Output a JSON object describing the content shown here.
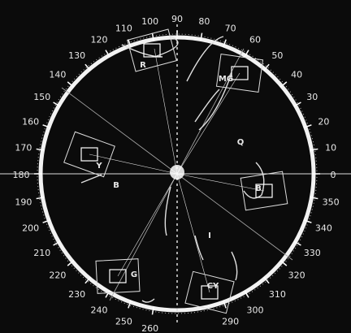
{
  "scale": {
    "degrees": [
      0,
      10,
      20,
      30,
      40,
      50,
      60,
      70,
      80,
      90,
      100,
      110,
      120,
      130,
      140,
      150,
      160,
      170,
      180,
      190,
      200,
      210,
      220,
      230,
      240,
      250,
      260,
      290,
      300,
      310,
      320,
      330,
      340,
      350
    ]
  },
  "targets": [
    "R",
    "MG",
    "B",
    "CY",
    "G",
    "Y"
  ],
  "axes": {
    "q": "Q",
    "i": "I"
  },
  "burst": "B"
}
